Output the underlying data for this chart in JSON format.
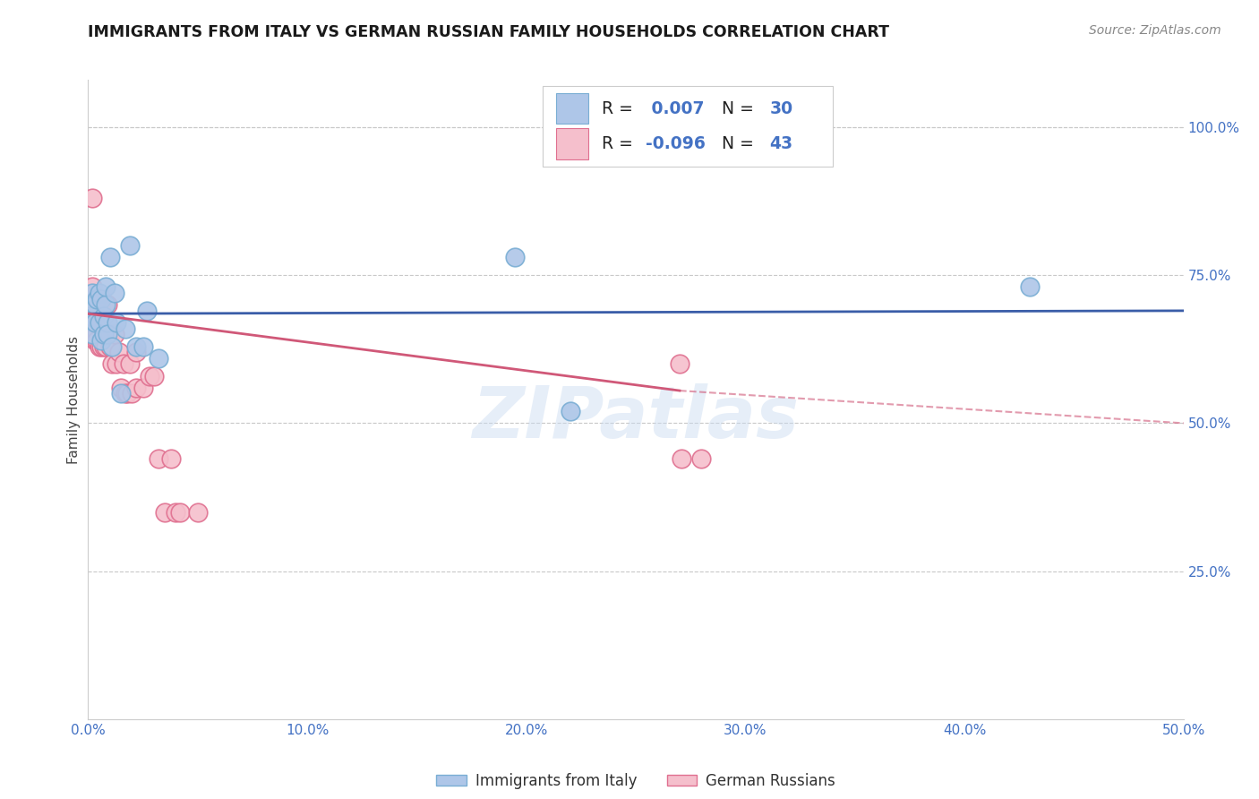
{
  "title": "IMMIGRANTS FROM ITALY VS GERMAN RUSSIAN FAMILY HOUSEHOLDS CORRELATION CHART",
  "source": "Source: ZipAtlas.com",
  "ylabel": "Family Households",
  "xlim": [
    0.0,
    0.5
  ],
  "ylim": [
    0.0,
    1.08
  ],
  "yticks": [
    0.25,
    0.5,
    0.75,
    1.0
  ],
  "ytick_labels": [
    "25.0%",
    "50.0%",
    "75.0%",
    "100.0%"
  ],
  "xticks": [
    0.0,
    0.1,
    0.2,
    0.3,
    0.4,
    0.5
  ],
  "xtick_labels": [
    "0.0%",
    "10.0%",
    "20.0%",
    "30.0%",
    "40.0%",
    "50.0%"
  ],
  "blue_R": 0.007,
  "blue_N": 30,
  "pink_R": -0.096,
  "pink_N": 43,
  "blue_color": "#aec6e8",
  "blue_edge": "#7aaed4",
  "pink_color": "#f5bfcc",
  "pink_edge": "#e07090",
  "blue_line_color": "#3a5da8",
  "pink_line_color": "#d05878",
  "watermark": "ZIPatlas",
  "legend_label_blue": "Immigrants from Italy",
  "legend_label_pink": "German Russians",
  "blue_scatter_x": [
    0.001,
    0.002,
    0.002,
    0.003,
    0.003,
    0.004,
    0.005,
    0.005,
    0.006,
    0.006,
    0.007,
    0.007,
    0.008,
    0.008,
    0.009,
    0.009,
    0.01,
    0.011,
    0.012,
    0.013,
    0.015,
    0.017,
    0.019,
    0.022,
    0.025,
    0.027,
    0.032,
    0.195,
    0.22,
    0.43
  ],
  "blue_scatter_y": [
    0.68,
    0.72,
    0.65,
    0.7,
    0.67,
    0.71,
    0.67,
    0.72,
    0.64,
    0.71,
    0.65,
    0.68,
    0.7,
    0.73,
    0.67,
    0.65,
    0.78,
    0.63,
    0.72,
    0.67,
    0.55,
    0.66,
    0.8,
    0.63,
    0.63,
    0.69,
    0.61,
    0.78,
    0.52,
    0.73
  ],
  "pink_scatter_x": [
    0.001,
    0.002,
    0.002,
    0.003,
    0.003,
    0.004,
    0.004,
    0.005,
    0.005,
    0.006,
    0.006,
    0.007,
    0.007,
    0.008,
    0.008,
    0.009,
    0.009,
    0.01,
    0.01,
    0.011,
    0.012,
    0.013,
    0.014,
    0.015,
    0.016,
    0.017,
    0.018,
    0.019,
    0.02,
    0.022,
    0.022,
    0.025,
    0.028,
    0.03,
    0.032,
    0.035,
    0.038,
    0.04,
    0.042,
    0.05,
    0.27,
    0.271,
    0.28
  ],
  "pink_scatter_y": [
    0.68,
    0.88,
    0.73,
    0.68,
    0.64,
    0.65,
    0.64,
    0.63,
    0.7,
    0.7,
    0.63,
    0.63,
    0.65,
    0.65,
    0.63,
    0.65,
    0.7,
    0.65,
    0.63,
    0.6,
    0.65,
    0.6,
    0.62,
    0.56,
    0.6,
    0.55,
    0.55,
    0.6,
    0.55,
    0.62,
    0.56,
    0.56,
    0.58,
    0.58,
    0.44,
    0.35,
    0.44,
    0.35,
    0.35,
    0.35,
    0.6,
    0.44,
    0.44
  ],
  "blue_line_x0": 0.0,
  "blue_line_x1": 0.5,
  "blue_line_y0": 0.685,
  "blue_line_y1": 0.69,
  "pink_line_solid_x0": 0.0,
  "pink_line_solid_x1": 0.27,
  "pink_line_solid_y0": 0.685,
  "pink_line_solid_y1": 0.555,
  "pink_line_dash_x0": 0.27,
  "pink_line_dash_x1": 0.5,
  "pink_line_dash_y0": 0.555,
  "pink_line_dash_y1": 0.5
}
